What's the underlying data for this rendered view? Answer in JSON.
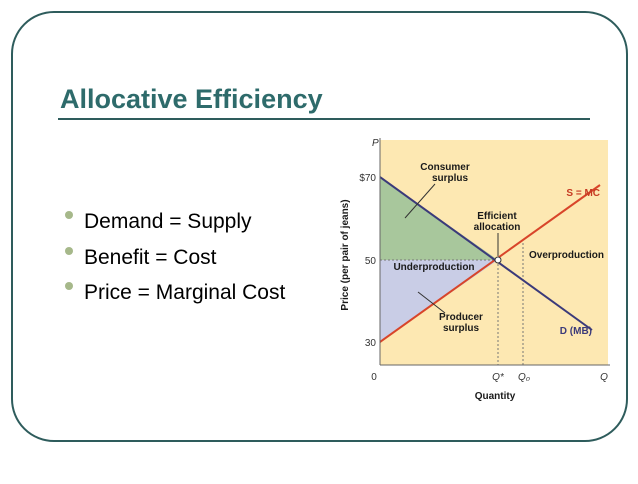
{
  "slide": {
    "title": "Allocative Efficiency",
    "bullets": [
      "Demand = Supply",
      "Benefit = Cost",
      "Price = Marginal Cost"
    ]
  },
  "diagram": {
    "y_axis_symbol": "P",
    "x_axis_symbol": "Q",
    "y_axis_label": "Price (per pair of jeans)",
    "x_axis_label": "Quantity",
    "y_ticks": [
      "$70",
      "50",
      "30",
      "0"
    ],
    "x_ticks": [
      "Q*",
      "Q₀"
    ],
    "labels": {
      "consumer_surplus": [
        "Consumer",
        "surplus"
      ],
      "efficient_allocation": [
        "Efficient",
        "allocation"
      ],
      "supply": "S = MC",
      "overproduction": "Overproduction",
      "underproduction": "Underproduction",
      "producer_surplus": [
        "Producer",
        "surplus"
      ],
      "demand": "D (MB)"
    }
  }
}
